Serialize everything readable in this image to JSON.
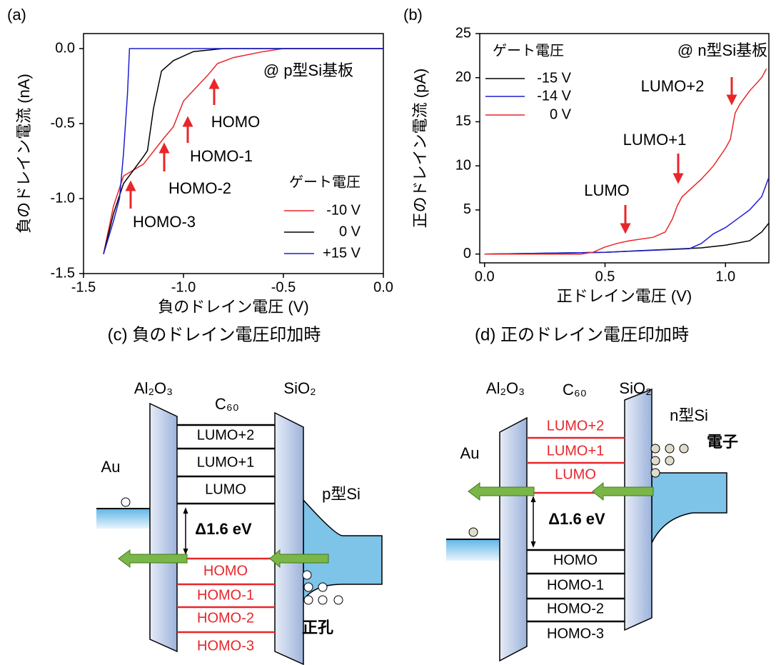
{
  "chart_data": [
    {
      "type": "line",
      "panel": "(a)",
      "x_label": "負のドレイン電圧 (V)",
      "y_label": "負のドレイン電流 (nA)",
      "xlim": [
        -1.5,
        0
      ],
      "ylim": [
        -1.5,
        0.1
      ],
      "xticks": [
        -1.5,
        {
          "value": -1,
          "label": "-1.0"
        },
        -0.5,
        {
          "value": 0,
          "label": "0.0"
        }
      ],
      "yticks": [
        {
          "value": -1.5,
          "label": "-1.5"
        },
        {
          "value": -1,
          "label": "-1.0"
        },
        -0.5,
        {
          "value": 0,
          "label": "0.0"
        }
      ],
      "legend_title": "ゲート電圧",
      "annotations": [
        "@ p型Si基板",
        "HOMO",
        "HOMO-1",
        "HOMO-2",
        "HOMO-3"
      ],
      "series": [
        {
          "name": "-10 V",
          "color": "#e8262a",
          "x": [
            -1.4,
            -1.35,
            -1.3,
            -1.2,
            -1.1,
            -1.05,
            -1.0,
            -0.93,
            -0.88,
            -0.83,
            -0.75,
            -0.6,
            -0.5,
            0
          ],
          "values": [
            -1.37,
            -1.05,
            -0.85,
            -0.77,
            -0.6,
            -0.52,
            -0.35,
            -0.25,
            -0.18,
            -0.1,
            -0.06,
            -0.02,
            0,
            0
          ]
        },
        {
          "name": "0 V",
          "color": "#000000",
          "x": [
            -1.4,
            -1.35,
            -1.3,
            -1.2,
            -1.18,
            -1.15,
            -1.11,
            -1.05,
            -0.95,
            -0.8,
            0
          ],
          "values": [
            -1.37,
            -1.1,
            -0.9,
            -0.72,
            -0.68,
            -0.4,
            -0.15,
            -0.08,
            -0.02,
            0,
            0
          ]
        },
        {
          "name": "+15 V",
          "color": "#1f1fd0",
          "x": [
            -1.4,
            -1.35,
            -1.32,
            -1.3,
            -1.28,
            -1.27,
            -1.0,
            0
          ],
          "values": [
            -1.37,
            -1.15,
            -1.0,
            -0.7,
            -0.3,
            0,
            0,
            0
          ]
        }
      ]
    },
    {
      "type": "line",
      "panel": "(b)",
      "x_label": "正ドレイン電圧 (V)",
      "y_label": "正のドレイン電流 (pA)",
      "xlim": [
        -0.02,
        1.18
      ],
      "ylim": [
        -1,
        25
      ],
      "xticks": [
        {
          "value": 0,
          "label": "0.0"
        },
        0.5,
        {
          "value": 1,
          "label": "1.0"
        }
      ],
      "yticks": [
        0,
        5,
        10,
        15,
        20,
        25
      ],
      "legend_title": "ゲート電圧",
      "annotations": [
        "@ n型Si基板",
        "LUMO+2",
        "LUMO+1",
        "LUMO"
      ],
      "series": [
        {
          "name": "-15 V",
          "color": "#000000",
          "x": [
            0,
            0.5,
            0.9,
            1.0,
            1.1,
            1.15,
            1.18
          ],
          "values": [
            0,
            0.2,
            0.7,
            1.0,
            1.5,
            2.5,
            3.5
          ]
        },
        {
          "name": "-14 V",
          "color": "#1f1fd0",
          "x": [
            0,
            0.5,
            0.85,
            0.9,
            0.95,
            1.0,
            1.05,
            1.1,
            1.15,
            1.18
          ],
          "values": [
            0,
            0.2,
            0.6,
            1.2,
            2.3,
            3,
            4,
            5,
            6.5,
            8.7
          ]
        },
        {
          "name": "0 V",
          "color": "#e8262a",
          "x": [
            0,
            0.4,
            0.45,
            0.5,
            0.55,
            0.6,
            0.7,
            0.75,
            0.78,
            0.8,
            0.82,
            0.9,
            0.95,
            1.0,
            1.02,
            1.04,
            1.06,
            1.1,
            1.15,
            1.17
          ],
          "values": [
            0,
            0,
            0.2,
            0.8,
            1.2,
            1.5,
            1.9,
            2.5,
            4,
            5.5,
            6.5,
            8.5,
            10,
            12,
            13,
            16,
            17,
            18.5,
            20,
            21
          ]
        }
      ]
    }
  ],
  "diagrams": [
    {
      "title": "(c) 負のドレイン電圧印加時",
      "barrier_left": "Al₂O₃",
      "molecule": "C₆₀",
      "barrier_right": "SiO₂",
      "electrode": "Au",
      "substrate": "p型Si",
      "carrier": "正孔",
      "gap": "Δ1.6 eV",
      "levels": [
        "LUMO+2",
        "LUMO+1",
        "LUMO",
        "HOMO",
        "HOMO-1",
        "HOMO-2",
        "HOMO-3"
      ]
    },
    {
      "title": "(d) 正のドレイン電圧印加時",
      "barrier_left": "Al₂O₃",
      "molecule": "C₆₀",
      "barrier_right": "SiO₂",
      "electrode": "Au",
      "substrate": "n型Si",
      "carrier": "電子",
      "gap": "Δ1.6 eV",
      "levels": [
        "LUMO+2",
        "LUMO+1",
        "LUMO",
        "HOMO",
        "HOMO-1",
        "HOMO-2",
        "HOMO-3"
      ]
    }
  ]
}
